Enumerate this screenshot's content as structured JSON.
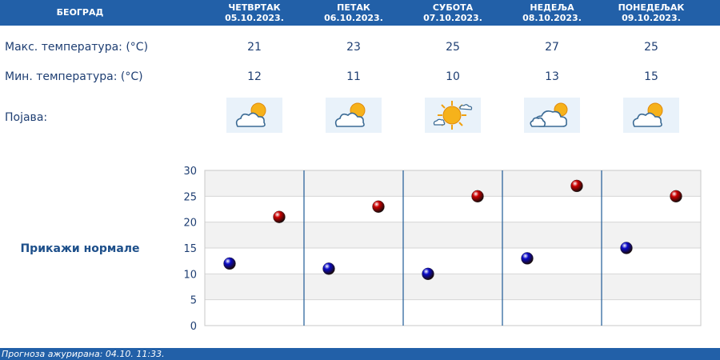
{
  "header": {
    "city": "БЕОГРАД"
  },
  "days": [
    {
      "name": "ЧЕТВРТАК",
      "date": "05.10.2023.",
      "max": "21",
      "min": "12",
      "icon": "partly-cloudy-icon"
    },
    {
      "name": "ПЕТАК",
      "date": "06.10.2023.",
      "max": "23",
      "min": "11",
      "icon": "partly-cloudy-icon"
    },
    {
      "name": "СУБОТА",
      "date": "07.10.2023.",
      "max": "25",
      "min": "10",
      "icon": "mostly-sunny-icon"
    },
    {
      "name": "НЕДЕЉА",
      "date": "08.10.2023.",
      "max": "27",
      "min": "13",
      "icon": "cloudy-sun-icon"
    },
    {
      "name": "ПОНЕДЕЉАК",
      "date": "09.10.2023.",
      "max": "25",
      "min": "15",
      "icon": "partly-cloudy-icon"
    }
  ],
  "labels": {
    "max": "Макс. температура: (°C)",
    "min": "Мин. температура: (°C)",
    "phenomenon": "Појава:"
  },
  "normals_link": "Прикажи нормале",
  "footer": {
    "updated": "Прогноза ажурирана:  04.10. 11:33."
  },
  "colors": {
    "header_bg": "#2260a8",
    "max_marker": "#cc0000",
    "min_marker": "#0a0ac8"
  },
  "chart_data": {
    "type": "scatter",
    "categories": [
      "05.10.2023.",
      "06.10.2023.",
      "07.10.2023.",
      "08.10.2023.",
      "09.10.2023."
    ],
    "series": [
      {
        "values": [
          12,
          11,
          10,
          13,
          15
        ],
        "color": "#0a0ac8"
      },
      {
        "values": [
          21,
          23,
          25,
          27,
          25
        ],
        "color": "#cc0000"
      }
    ],
    "yticks": [
      0,
      5,
      10,
      15,
      20,
      25,
      30
    ],
    "ylim": [
      0,
      30
    ],
    "grid": true
  }
}
